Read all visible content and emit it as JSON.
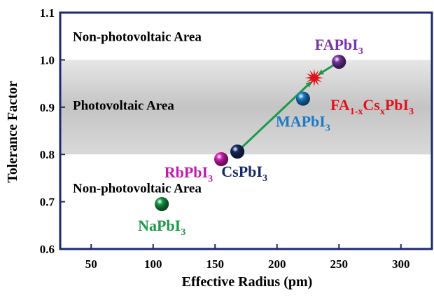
{
  "chart_data": {
    "type": "scatter",
    "xlabel": "Effective Radius (pm)",
    "ylabel": "Tolerance Factor",
    "xlim": [
      25,
      325
    ],
    "ylim": [
      0.6,
      1.1
    ],
    "x_ticks": [
      50,
      100,
      150,
      200,
      250,
      300
    ],
    "y_ticks": [
      0.6,
      0.7,
      0.8,
      0.9,
      1.0,
      1.1
    ],
    "x_tick_labels": [
      "50",
      "100",
      "150",
      "200",
      "250",
      "300"
    ],
    "y_tick_labels": [
      "0.6",
      "0.7",
      "0.8",
      "0.9",
      "1.0",
      "1.1"
    ],
    "photovoltaic_band": [
      0.8,
      1.0
    ],
    "regions": [
      {
        "label": "Non-photovoltaic Area",
        "y": 1.05
      },
      {
        "label": "Photovoltaic Area",
        "y": 0.905
      },
      {
        "label": "Non-photovoltaic Area",
        "y": 0.73
      }
    ],
    "points": [
      {
        "main": "NaPbI",
        "sub": "3",
        "x": 107,
        "y": 0.695,
        "color": "#1a9a4a",
        "label_color": "#1a9a4a"
      },
      {
        "main": "RbPbI",
        "sub": "3",
        "x": 155,
        "y": 0.79,
        "color": "#d81fb8",
        "label_color": "#c21ab0"
      },
      {
        "main": "CsPbI",
        "sub": "3",
        "x": 168,
        "y": 0.806,
        "color": "#172a66",
        "label_color": "#172a66"
      },
      {
        "main": "MAPbI",
        "sub": "3",
        "x": 221,
        "y": 0.918,
        "color": "#1e7fd0",
        "label_color": "#1e7ac4"
      },
      {
        "main": "FAPbI",
        "sub": "3",
        "x": 250,
        "y": 0.996,
        "color": "#7a35a6",
        "label_color": "#7a35a6"
      }
    ],
    "mixed_label": {
      "parts": [
        "FA",
        "1-x",
        "Cs",
        "x",
        "PbI",
        "3"
      ],
      "x": 230,
      "y": 0.962,
      "color": "#e0121a"
    },
    "arrows": [
      {
        "from": [
          168,
          0.806
        ],
        "to": [
          227,
          0.952
        ]
      },
      {
        "from": [
          250,
          0.996
        ],
        "to": [
          234,
          0.97
        ]
      }
    ],
    "colors": {
      "band": "#c9c9c9",
      "axis": "#1a2a6c",
      "arrow": "#1a9a4a",
      "star": "#e0121a"
    }
  }
}
